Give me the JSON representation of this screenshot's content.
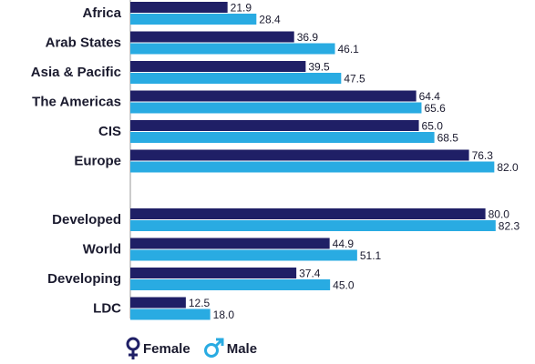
{
  "chart_data": {
    "type": "bar",
    "orientation": "horizontal",
    "groups": [
      [
        "Africa",
        "Arab States",
        "Asia & Pacific",
        "The Americas",
        "CIS",
        "Europe"
      ],
      [
        "Developed",
        "World",
        "Developing",
        "LDC"
      ]
    ],
    "categories": [
      "Africa",
      "Arab States",
      "Asia & Pacific",
      "The Americas",
      "CIS",
      "Europe",
      "Developed",
      "World",
      "Developing",
      "LDC"
    ],
    "series": [
      {
        "name": "Female",
        "color": "#1f1f66",
        "values": [
          21.9,
          36.9,
          39.5,
          64.4,
          65.0,
          76.3,
          80.0,
          44.9,
          37.4,
          12.5
        ]
      },
      {
        "name": "Male",
        "color": "#29abe2",
        "values": [
          28.4,
          46.1,
          47.5,
          65.6,
          68.5,
          82.0,
          82.3,
          51.1,
          45.0,
          18.0
        ]
      }
    ],
    "value_labels": [
      [
        "21.9",
        "36.9",
        "39.5",
        "64.4",
        "65.0",
        "76.3",
        "80.0",
        "44.9",
        "37.4",
        "12.5"
      ],
      [
        "28.4",
        "46.1",
        "47.5",
        "65.6",
        "68.5",
        "82.0",
        "82.3",
        "51.1",
        "45.0",
        "18.0"
      ]
    ],
    "xlim": [
      0,
      100
    ],
    "axis_visible": false,
    "grid": false,
    "legend_position": "bottom-left"
  },
  "legend": {
    "female_label": "Female",
    "male_label": "Male",
    "female_icon": "female-symbol-icon",
    "male_icon": "male-symbol-icon"
  }
}
